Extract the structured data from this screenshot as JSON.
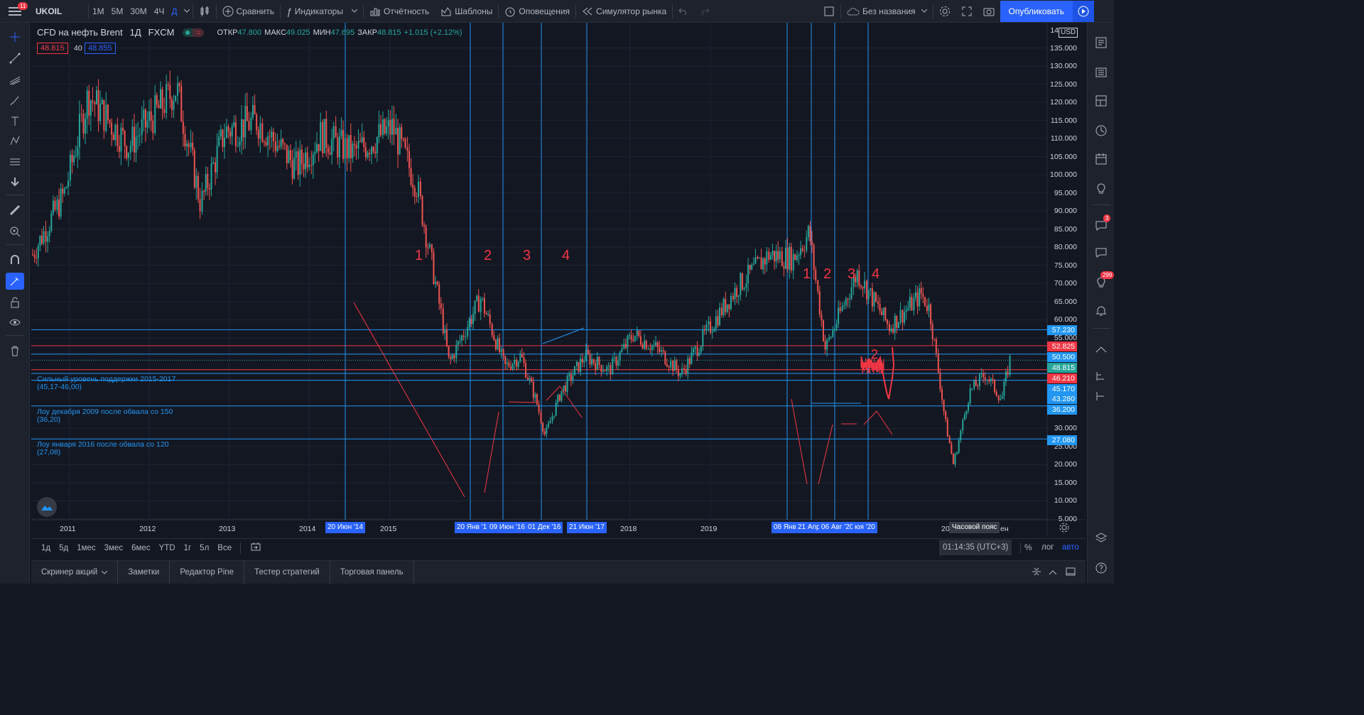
{
  "topbar": {
    "menu_badge": "11",
    "symbol": "UKOIL",
    "intervals": [
      "1M",
      "5M",
      "30M",
      "4Ч",
      "Д"
    ],
    "active_interval": "Д",
    "compare": "Сравнить",
    "indicators": "Индикаторы",
    "reports": "Отчётность",
    "templates": "Шаблоны",
    "alerts": "Оповещения",
    "replay": "Симулятор рынка",
    "layout_name": "Без названия",
    "publish": "Опубликовать"
  },
  "legend": {
    "title": "CFD на нефть Brent",
    "interval": "1Д",
    "exchange": "FXCM",
    "open_label": "ОТКР",
    "open": "47.800",
    "high_label": "МАКС",
    "high": "49.025",
    "low_label": "МИН",
    "low": "47.695",
    "close_label": "ЗАКР",
    "close": "48.815",
    "change": "+1.015 (+2.12%)",
    "bid": "48.815",
    "spread": "40",
    "ask": "48.855"
  },
  "right_axis": {
    "currency": "USD",
    "top_partial": "14",
    "ticks": [
      "135.000",
      "130.000",
      "125.000",
      "120.000",
      "115.000",
      "110.000",
      "105.000",
      "100.000",
      "95.000",
      "90.000",
      "85.000",
      "80.000",
      "75.000",
      "70.000",
      "65.000",
      "60.000",
      "55.000",
      "30.000",
      "25.000",
      "20.000",
      "15.000",
      "10.000",
      "5.000"
    ]
  },
  "price_tags": [
    {
      "text": "57.230",
      "color": "#2196f3"
    },
    {
      "text": "52.825",
      "color": "#f23645"
    },
    {
      "text": "50.500",
      "color": "#2196f3"
    },
    {
      "text": "48.815",
      "color": "#26a69a"
    },
    {
      "text": "46.210",
      "color": "#f23645"
    },
    {
      "text": "45.170",
      "color": "#2196f3"
    },
    {
      "text": "43.280",
      "color": "#2196f3"
    },
    {
      "text": "36.200",
      "color": "#2196f3"
    },
    {
      "text": "27.080",
      "color": "#2196f3"
    }
  ],
  "x_axis": {
    "ticks": [
      "2011",
      "2012",
      "2013",
      "2014",
      "2015",
      "2018",
      "2019"
    ],
    "partial": [
      "20",
      "ен"
    ],
    "tags": [
      "20 Июн '14",
      "20 Янв '1",
      "09 Июн '16",
      "01 Дек '16",
      "21 Июн '17",
      "08 Янв",
      "21 Апр",
      "06 Авг '20",
      "юя '20"
    ],
    "timezone": "Часовой пояс"
  },
  "annotations": {
    "group1": [
      "1",
      "2",
      "3",
      "4"
    ],
    "group2": [
      "1",
      "2",
      "3",
      "4"
    ],
    "extra": "2"
  },
  "notes": [
    {
      "line1": "Сильный уровень поддержки 2015-2017",
      "line2": "(45,17-46,00)"
    },
    {
      "line1": "Лоу декабря 2009 после обвала со 150",
      "line2": "(36,20)"
    },
    {
      "line1": "Лоу января 2016 после обвала со 120",
      "line2": "(27,08)"
    }
  ],
  "bottom": {
    "ranges": [
      "1д",
      "5д",
      "1мес",
      "3мес",
      "6мес",
      "YTD",
      "1г",
      "5л",
      "Все"
    ],
    "clock": "01:14:35 (UTC+3)",
    "percent": "%",
    "log": "лог",
    "auto": "авто"
  },
  "panels": [
    "Скринер акций",
    "Заметки",
    "Редактор Pine",
    "Тестер стратегий",
    "Торговая панель"
  ],
  "right_badges": {
    "chat": "3",
    "notifications": "299"
  },
  "colors": {
    "bg": "#131722",
    "up": "#26a69a",
    "down": "#ef5350",
    "accent": "#2962ff",
    "level": "#2196f3",
    "red": "#f23645"
  },
  "chart_data": {
    "type": "candlestick",
    "title": "CFD на нефть Brent, 1Д, FXCM",
    "ylabel": "USD",
    "ylim": [
      5,
      140
    ],
    "x": [
      "2010-09",
      "2011-01",
      "2011-04",
      "2011-09",
      "2012-03",
      "2012-06",
      "2012-09",
      "2013-01",
      "2013-06",
      "2013-09",
      "2014-01",
      "2014-06",
      "2014-09",
      "2014-12",
      "2015-01",
      "2015-05",
      "2015-08",
      "2015-10",
      "2015-12",
      "2016-01",
      "2016-03",
      "2016-06",
      "2016-09",
      "2016-12",
      "2017-03",
      "2017-06",
      "2017-09",
      "2018-01",
      "2018-05",
      "2018-08",
      "2018-10",
      "2018-12",
      "2019-04",
      "2019-08",
      "2019-12",
      "2020-01",
      "2020-03",
      "2020-04",
      "2020-06",
      "2020-08",
      "2020-10",
      "2020-11"
    ],
    "close": [
      78,
      95,
      122,
      108,
      124,
      92,
      112,
      115,
      102,
      111,
      106,
      113,
      97,
      62,
      48,
      66,
      47,
      50,
      37,
      28,
      40,
      50,
      46,
      56,
      52,
      45,
      56,
      69,
      78,
      77,
      84,
      52,
      73,
      58,
      67,
      63,
      32,
      20,
      40,
      45,
      38,
      48.815
    ],
    "series_lines": {
      "horizontal_levels": [
        57.23,
        52.825,
        50.5,
        48.815,
        46.21,
        45.17,
        43.28,
        36.2,
        27.08
      ],
      "vertical_markers": [
        "2014-06-20",
        "2016-01-20",
        "2016-06-09",
        "2016-12-01",
        "2017-06-21",
        "2020-01-08",
        "2020-04-21",
        "2020-08-06",
        "2020-11"
      ]
    }
  }
}
